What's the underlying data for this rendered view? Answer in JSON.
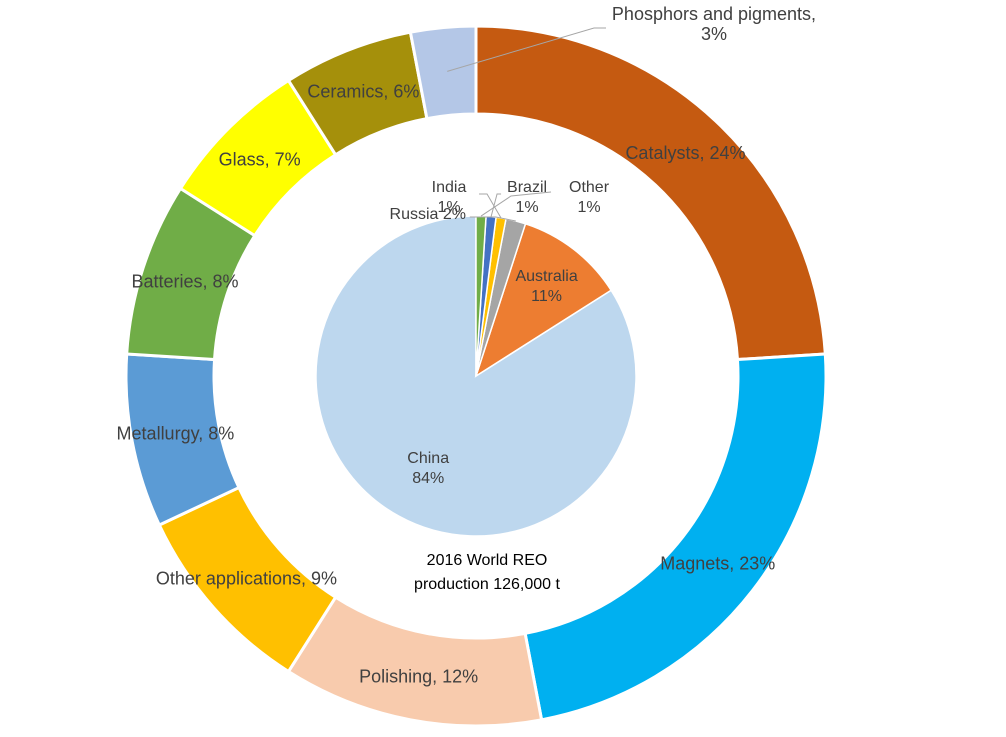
{
  "chart_data": [
    {
      "type": "pie",
      "variant": "donut",
      "series_role": "outer",
      "slices": [
        {
          "label": "Catalysts",
          "value": 24,
          "display": "Catalysts, 24%",
          "color": "#c55a11"
        },
        {
          "label": "Magnets",
          "value": 23,
          "display": "Magnets, 23%",
          "color": "#00b0f0"
        },
        {
          "label": "Polishing",
          "value": 12,
          "display": "Polishing, 12%",
          "color": "#f8cbad"
        },
        {
          "label": "Other applications",
          "value": 9,
          "display": "Other applications, 9%",
          "color": "#ffc000"
        },
        {
          "label": "Metallurgy",
          "value": 8,
          "display": "Metallurgy, 8%",
          "color": "#5b9bd5"
        },
        {
          "label": "Batteries",
          "value": 8,
          "display": "Batteries, 8%",
          "color": "#70ad47"
        },
        {
          "label": "Glass",
          "value": 7,
          "display": "Glass, 7%",
          "color": "#ffff00"
        },
        {
          "label": "Ceramics",
          "value": 6,
          "display": "Ceramics, 6%",
          "color": "#a5900b"
        },
        {
          "label": "Phosphors and pigments",
          "value": 3,
          "display_lines": [
            "Phosphors and pigments,",
            "3%"
          ],
          "color": "#b4c7e7"
        }
      ]
    },
    {
      "type": "pie",
      "series_role": "inner",
      "slices": [
        {
          "label": "China",
          "value": 84,
          "display_lines": [
            "China",
            "84%"
          ],
          "color": "#bdd7ee"
        },
        {
          "label": "Australia",
          "value": 11,
          "display_lines": [
            "Australia",
            "11%"
          ],
          "color": "#ed7d31"
        },
        {
          "label": "Russia",
          "value": 2,
          "display_lines": [
            "Russia 2%"
          ],
          "color": "#a5a5a5"
        },
        {
          "label": "India",
          "value": 1,
          "display_lines": [
            "India",
            "1%"
          ],
          "color": "#ffc000"
        },
        {
          "label": "Brazil",
          "value": 1,
          "display_lines": [
            "Brazil",
            "1%"
          ],
          "color": "#4472c4"
        },
        {
          "label": "Other",
          "value": 1,
          "display_lines": [
            "Other",
            "1%"
          ],
          "color": "#70ad47"
        }
      ]
    }
  ],
  "center_text": {
    "line1": "2016 World REO",
    "line2": "production 126,000 t"
  }
}
